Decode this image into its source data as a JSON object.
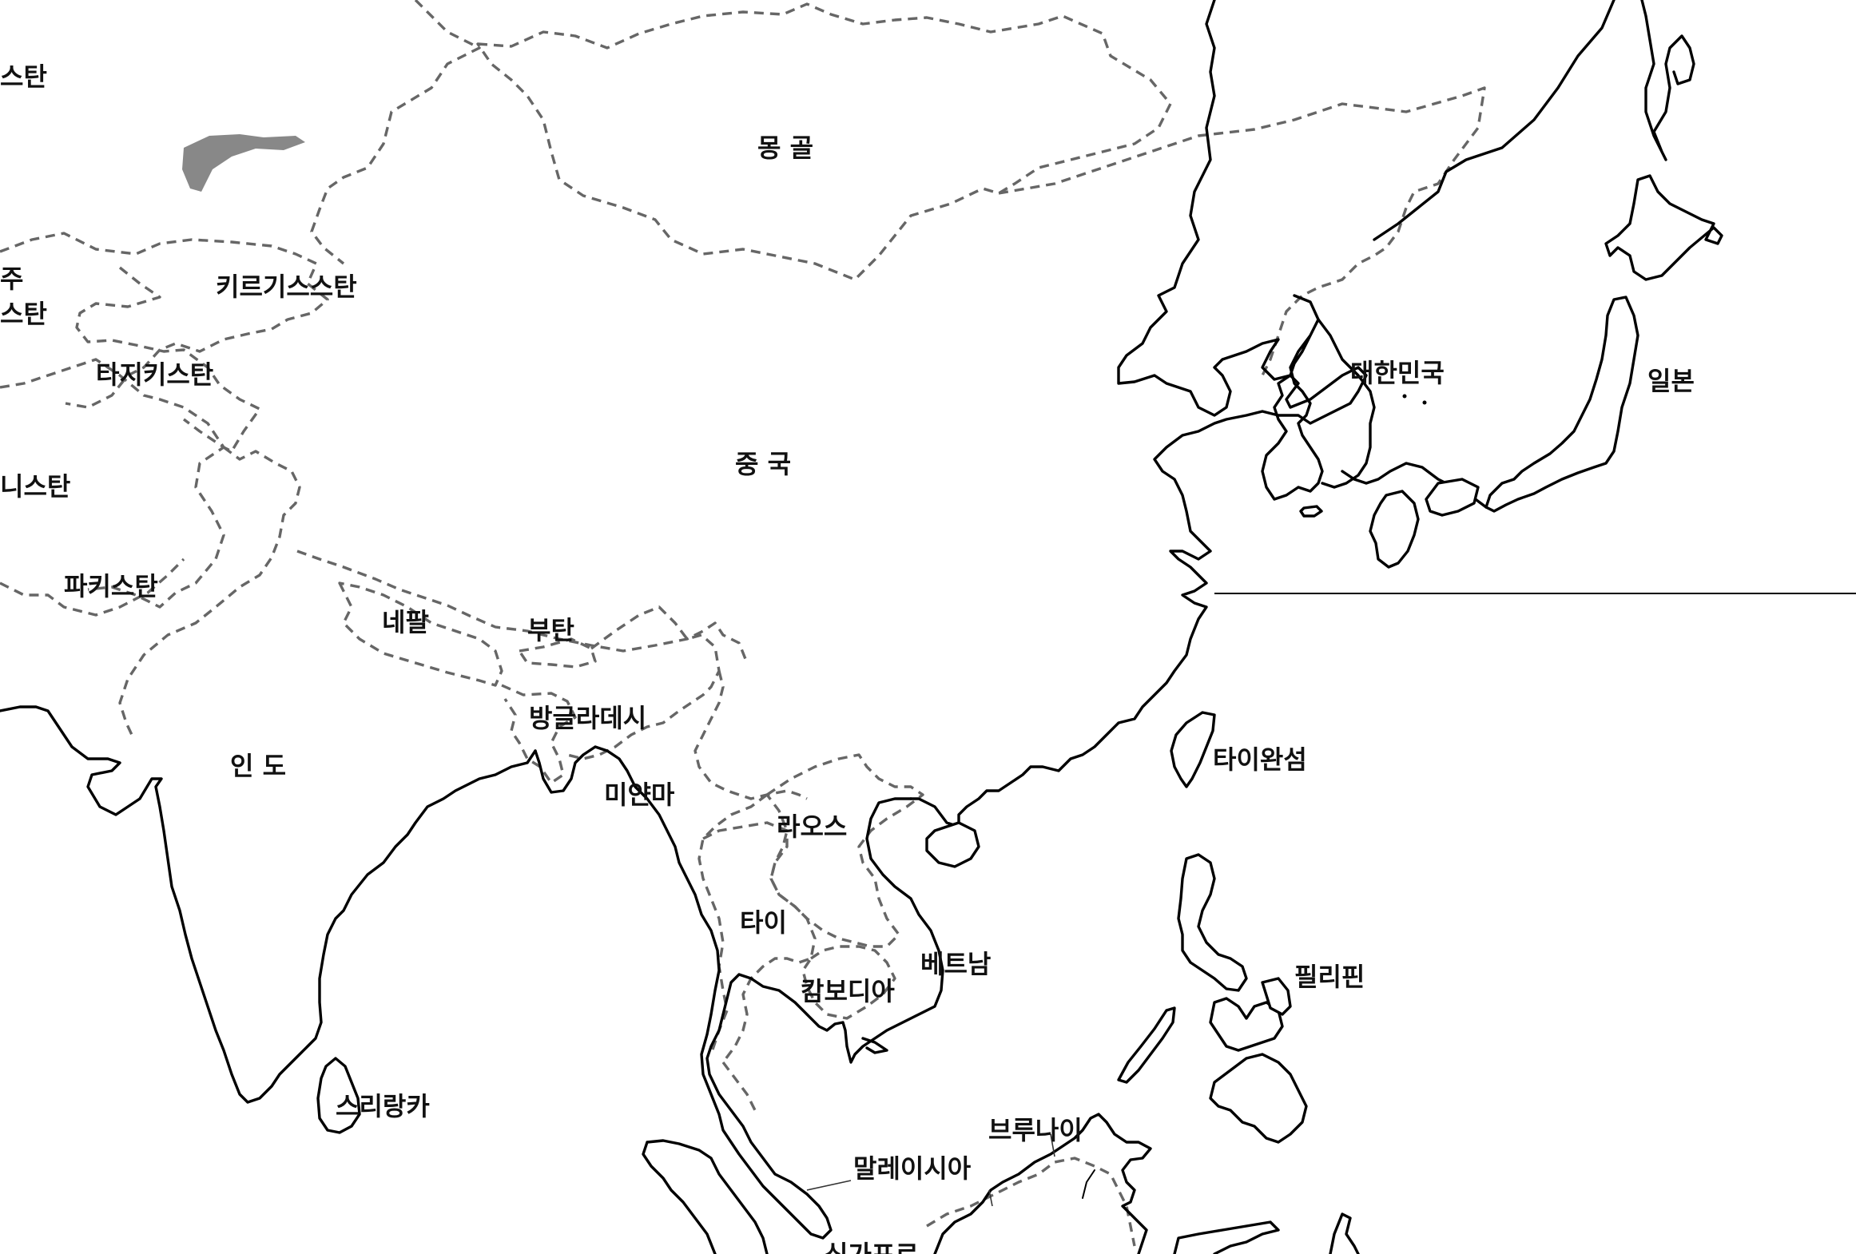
{
  "colors": {
    "coastline": "#000000",
    "border": "#666666",
    "lake": "#888888",
    "background": "#ffffff"
  },
  "labels": {
    "partial_kazakhstan": "스탄",
    "uzbekistan_part1": "주",
    "uzbekistan_part2": "스탄",
    "kyrgyzstan": "키르기스스탄",
    "tajikistan": "타지키스탄",
    "afghanistan_partial": "니스탄",
    "pakistan": "파키스탄",
    "mongolia": "몽 골",
    "china": "중 국",
    "nepal": "네팔",
    "bhutan": "부탄",
    "bangladesh": "방글라데시",
    "india": "인 도",
    "myanmar": "미얀마",
    "laos": "라오스",
    "thailand": "타이",
    "cambodia": "캄보디아",
    "vietnam": "베트남",
    "sri_lanka": "스리랑카",
    "malaysia": "말레이시아",
    "brunei": "브루나이",
    "singapore_partial": "싱가포르",
    "taiwan": "타이완섬",
    "philippines": "필리핀",
    "south_korea": "대한민국",
    "japan": "일본"
  }
}
